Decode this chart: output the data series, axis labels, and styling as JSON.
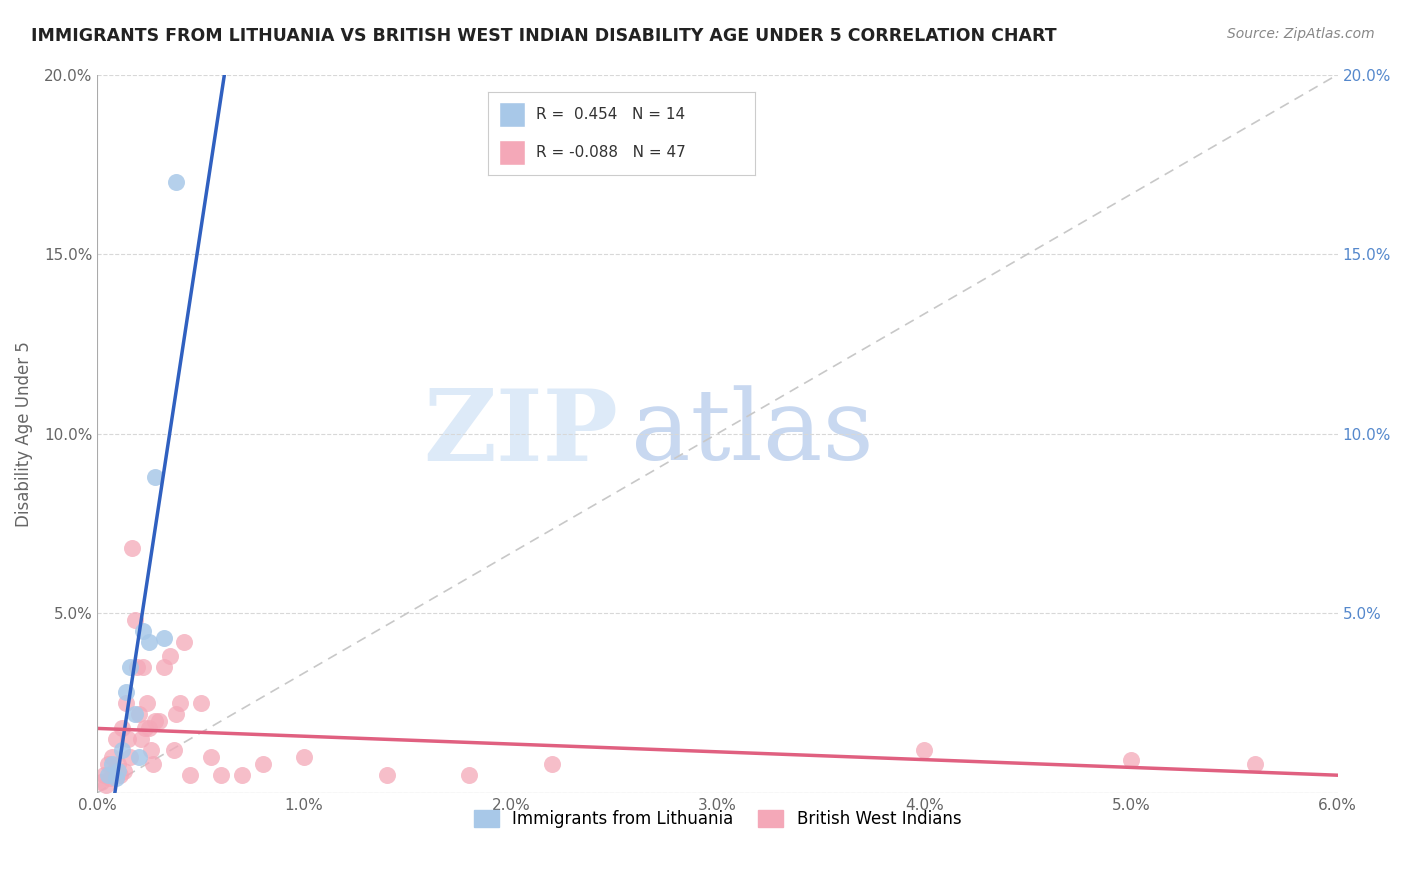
{
  "title": "IMMIGRANTS FROM LITHUANIA VS BRITISH WEST INDIAN DISABILITY AGE UNDER 5 CORRELATION CHART",
  "source": "Source: ZipAtlas.com",
  "ylabel": "Disability Age Under 5",
  "watermark_zip": "ZIP",
  "watermark_atlas": "atlas",
  "legend_label_1": "Immigrants from Lithuania",
  "legend_label_2": "British West Indians",
  "R_lithuania": 0.454,
  "N_lithuania": 14,
  "R_bwi": -0.088,
  "N_bwi": 47,
  "color_lithuania": "#a8c8e8",
  "color_bwi": "#f4a8b8",
  "color_lithuania_line": "#3060c0",
  "color_bwi_line": "#e06080",
  "color_diag_line": "#c8c8c8",
  "background_color": "#ffffff",
  "xlim": [
    0.0,
    6.0
  ],
  "ylim": [
    0.0,
    20.0
  ],
  "xtick_vals": [
    0,
    1,
    2,
    3,
    4,
    5,
    6
  ],
  "ytick_vals": [
    0,
    5,
    10,
    15,
    20
  ],
  "lithuania_x": [
    0.05,
    0.07,
    0.09,
    0.1,
    0.12,
    0.14,
    0.16,
    0.18,
    0.2,
    0.22,
    0.25,
    0.28,
    0.32,
    0.38
  ],
  "lithuania_y": [
    0.5,
    0.8,
    0.4,
    0.6,
    1.2,
    2.8,
    3.5,
    2.2,
    1.0,
    4.5,
    4.2,
    8.8,
    4.3,
    17.0
  ],
  "bwi_x": [
    0.02,
    0.03,
    0.04,
    0.05,
    0.06,
    0.07,
    0.08,
    0.09,
    0.1,
    0.11,
    0.12,
    0.13,
    0.14,
    0.15,
    0.16,
    0.17,
    0.18,
    0.19,
    0.2,
    0.21,
    0.22,
    0.23,
    0.24,
    0.25,
    0.26,
    0.27,
    0.28,
    0.3,
    0.32,
    0.35,
    0.37,
    0.38,
    0.4,
    0.42,
    0.45,
    0.5,
    0.55,
    0.6,
    0.7,
    0.8,
    1.0,
    1.4,
    1.8,
    2.2,
    4.0,
    5.0,
    5.6
  ],
  "bwi_y": [
    0.3,
    0.5,
    0.2,
    0.8,
    0.4,
    1.0,
    0.6,
    1.5,
    0.8,
    0.5,
    1.8,
    0.6,
    2.5,
    1.5,
    1.0,
    6.8,
    4.8,
    3.5,
    2.2,
    1.5,
    3.5,
    1.8,
    2.5,
    1.8,
    1.2,
    0.8,
    2.0,
    2.0,
    3.5,
    3.8,
    1.2,
    2.2,
    2.5,
    4.2,
    0.5,
    2.5,
    1.0,
    0.5,
    0.5,
    0.8,
    1.0,
    0.5,
    0.5,
    0.8,
    1.2,
    0.9,
    0.8
  ]
}
